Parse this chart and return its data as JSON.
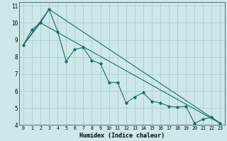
{
  "xlabel": "Humidex (Indice chaleur)",
  "bg_color": "#cce8e8",
  "grid_color": "#b0cccc",
  "line_color": "#1a6b6b",
  "xlim": [
    -0.5,
    23.5
  ],
  "ylim": [
    4,
    11.2
  ],
  "yticks": [
    4,
    5,
    6,
    7,
    8,
    9,
    10,
    11
  ],
  "xticks": [
    0,
    1,
    2,
    3,
    4,
    5,
    6,
    7,
    8,
    9,
    10,
    11,
    12,
    13,
    14,
    15,
    16,
    17,
    18,
    19,
    20,
    21,
    22,
    23
  ],
  "series": [
    [
      0,
      8.7
    ],
    [
      1,
      9.6
    ],
    [
      2,
      10.0
    ],
    [
      3,
      10.8
    ],
    [
      4,
      9.5
    ],
    [
      5,
      7.75
    ],
    [
      6,
      8.45
    ],
    [
      7,
      8.55
    ],
    [
      8,
      7.8
    ],
    [
      9,
      7.6
    ],
    [
      10,
      6.5
    ],
    [
      11,
      6.5
    ],
    [
      12,
      5.3
    ],
    [
      13,
      5.65
    ],
    [
      14,
      5.9
    ],
    [
      15,
      5.4
    ],
    [
      16,
      5.3
    ],
    [
      17,
      5.1
    ],
    [
      18,
      5.05
    ],
    [
      19,
      5.1
    ],
    [
      20,
      4.1
    ],
    [
      21,
      4.35
    ],
    [
      22,
      4.45
    ],
    [
      23,
      4.1
    ]
  ],
  "line2": [
    [
      0,
      8.7
    ],
    [
      3,
      10.8
    ],
    [
      23,
      4.1
    ]
  ],
  "line3": [
    [
      0,
      8.7
    ],
    [
      2,
      10.0
    ],
    [
      23,
      4.1
    ]
  ]
}
